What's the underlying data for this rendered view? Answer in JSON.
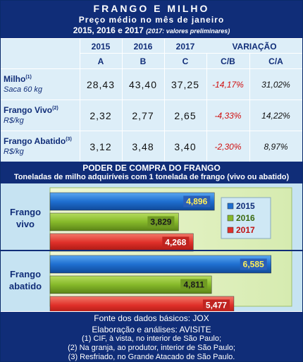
{
  "header": {
    "title": "FRANGO E MILHO",
    "subtitle": "Preço médio no mês de janeiro",
    "years_line": "2015, 2016 e 2017",
    "note": "(2017: valores preliminares)"
  },
  "table": {
    "col_years": [
      "2015",
      "2016",
      "2017"
    ],
    "variacao_label": "VARIAÇÃO",
    "col_letters": [
      "A",
      "B",
      "C"
    ],
    "variacao_cols": [
      "C/B",
      "C/A"
    ],
    "rows": [
      {
        "label": "Milho",
        "sup": "(1)",
        "unit": "Saca 60 kg",
        "values": [
          "28,43",
          "43,40",
          "37,25"
        ],
        "var_cb": "-14,17%",
        "var_ca": "31,02%"
      },
      {
        "label": "Frango Vivo",
        "sup": "(2)",
        "unit": "R$/kg",
        "values": [
          "2,32",
          "2,77",
          "2,65"
        ],
        "var_cb": "-4,33%",
        "var_ca": "14,22%"
      },
      {
        "label": "Frango Abatido",
        "sup": "(3)",
        "unit": "R$/kg",
        "values": [
          "3,12",
          "3,48",
          "3,40"
        ],
        "var_cb": "-2,30%",
        "var_ca": "8,97%"
      }
    ]
  },
  "chart_section": {
    "title": "PODER DE COMPRA DO FRANGO",
    "subtitle": "Toneladas de milho adquiríveis com 1 tonelada de frango (vivo ou abatido)"
  },
  "chart_data": {
    "type": "bar",
    "orientation": "horizontal",
    "categories": [
      "Frango vivo",
      "Frango abatido"
    ],
    "series": [
      {
        "name": "2015",
        "color": "#1f6fd0",
        "values": [
          4.896,
          6.585
        ],
        "labels": [
          "4,896",
          "6,585"
        ]
      },
      {
        "name": "2016",
        "color": "#86b92a",
        "values": [
          3.829,
          4.811
        ],
        "labels": [
          "3,829",
          "4,811"
        ]
      },
      {
        "name": "2017",
        "color": "#e0302a",
        "values": [
          4.268,
          5.477
        ],
        "labels": [
          "4,268",
          "5,477"
        ]
      }
    ],
    "xlim": [
      0,
      7.2
    ],
    "legend": "top-right",
    "grid": false
  },
  "footer": {
    "lines": [
      "Fonte dos dados básicos: JOX",
      "Elaboração e análises: AVISITE",
      "(1) CIF, à vista, no interior de São Paulo;",
      "(2) Na granja, ao produtor, interior de São Paulo;",
      "(3) Resfriado, no Grande Atacado de São Paulo."
    ]
  }
}
